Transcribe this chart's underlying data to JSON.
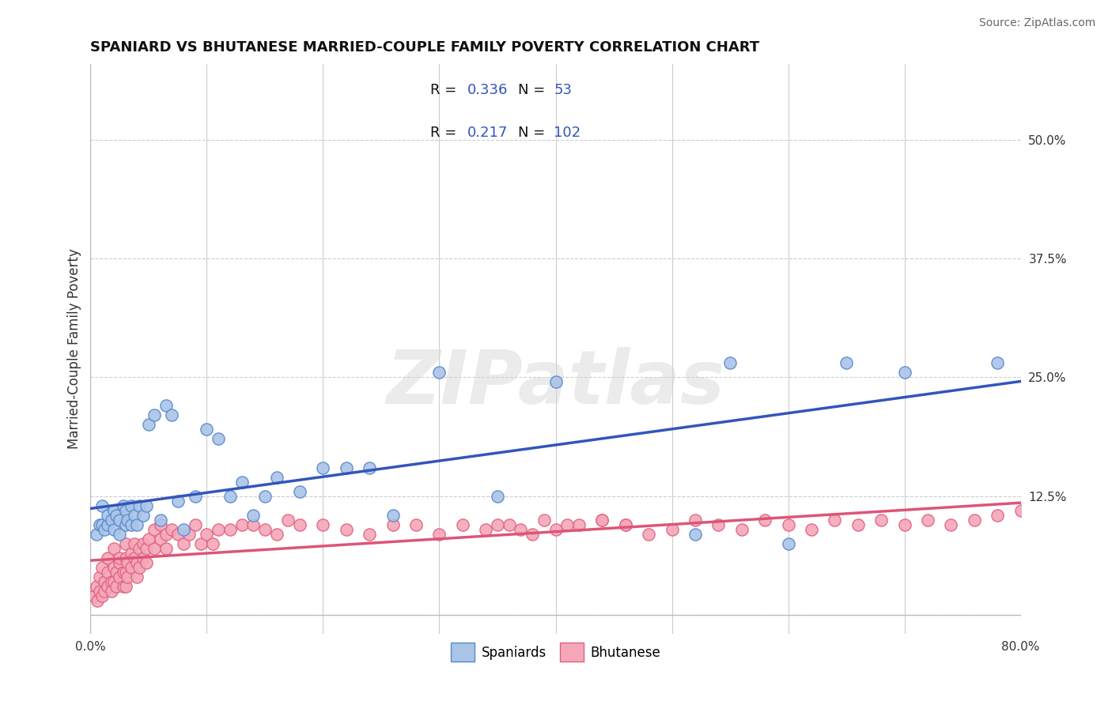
{
  "title": "SPANIARD VS BHUTANESE MARRIED-COUPLE FAMILY POVERTY CORRELATION CHART",
  "source": "Source: ZipAtlas.com",
  "ylabel": "Married-Couple Family Poverty",
  "xlim": [
    0.0,
    0.8
  ],
  "ylim": [
    -0.02,
    0.58
  ],
  "xticks": [
    0.0,
    0.8
  ],
  "xticklabels": [
    "0.0%",
    "80.0%"
  ],
  "ytick_positions": [
    0.0,
    0.125,
    0.25,
    0.375,
    0.5
  ],
  "ytick_labels": [
    "",
    "12.5%",
    "25.0%",
    "37.5%",
    "50.0%"
  ],
  "spaniard_color": "#aac4e8",
  "bhutanese_color": "#f4a7b8",
  "spaniard_edge_color": "#5588cc",
  "bhutanese_edge_color": "#e06080",
  "spaniard_line_color": "#3355bb",
  "bhutanese_line_color": "#dd5577",
  "legend_R1": "0.336",
  "legend_N1": "53",
  "legend_R2": "0.217",
  "legend_N2": "102",
  "watermark": "ZIPatlas",
  "background_color": "#ffffff",
  "grid_color": "#cccccc",
  "spaniard_x": [
    0.005,
    0.008,
    0.01,
    0.01,
    0.012,
    0.015,
    0.015,
    0.018,
    0.02,
    0.02,
    0.022,
    0.025,
    0.025,
    0.028,
    0.03,
    0.03,
    0.032,
    0.035,
    0.035,
    0.038,
    0.04,
    0.042,
    0.045,
    0.048,
    0.05,
    0.055,
    0.06,
    0.065,
    0.07,
    0.075,
    0.08,
    0.09,
    0.1,
    0.11,
    0.12,
    0.13,
    0.14,
    0.15,
    0.16,
    0.18,
    0.2,
    0.22,
    0.24,
    0.26,
    0.3,
    0.35,
    0.4,
    0.52,
    0.55,
    0.6,
    0.65,
    0.7,
    0.78
  ],
  "spaniard_y": [
    0.085,
    0.095,
    0.095,
    0.115,
    0.09,
    0.095,
    0.105,
    0.1,
    0.09,
    0.11,
    0.105,
    0.085,
    0.1,
    0.115,
    0.095,
    0.11,
    0.1,
    0.095,
    0.115,
    0.105,
    0.095,
    0.115,
    0.105,
    0.115,
    0.2,
    0.21,
    0.1,
    0.22,
    0.21,
    0.12,
    0.09,
    0.125,
    0.195,
    0.185,
    0.125,
    0.14,
    0.105,
    0.125,
    0.145,
    0.13,
    0.155,
    0.155,
    0.155,
    0.105,
    0.255,
    0.125,
    0.245,
    0.085,
    0.265,
    0.075,
    0.265,
    0.255,
    0.265
  ],
  "bhutanese_x": [
    0.003,
    0.005,
    0.006,
    0.008,
    0.008,
    0.01,
    0.01,
    0.012,
    0.012,
    0.015,
    0.015,
    0.015,
    0.018,
    0.018,
    0.02,
    0.02,
    0.02,
    0.022,
    0.022,
    0.025,
    0.025,
    0.025,
    0.028,
    0.028,
    0.03,
    0.03,
    0.03,
    0.03,
    0.032,
    0.032,
    0.035,
    0.035,
    0.038,
    0.038,
    0.04,
    0.04,
    0.042,
    0.042,
    0.045,
    0.045,
    0.048,
    0.048,
    0.05,
    0.055,
    0.055,
    0.06,
    0.06,
    0.065,
    0.065,
    0.07,
    0.075,
    0.08,
    0.085,
    0.09,
    0.095,
    0.1,
    0.105,
    0.11,
    0.12,
    0.13,
    0.14,
    0.15,
    0.16,
    0.17,
    0.18,
    0.2,
    0.22,
    0.24,
    0.26,
    0.28,
    0.3,
    0.32,
    0.34,
    0.36,
    0.38,
    0.4,
    0.42,
    0.44,
    0.46,
    0.48,
    0.5,
    0.52,
    0.54,
    0.56,
    0.58,
    0.6,
    0.62,
    0.64,
    0.66,
    0.68,
    0.7,
    0.72,
    0.74,
    0.76,
    0.78,
    0.8,
    0.35,
    0.37,
    0.39,
    0.41,
    0.44,
    0.46
  ],
  "bhutanese_y": [
    0.02,
    0.03,
    0.015,
    0.04,
    0.025,
    0.02,
    0.05,
    0.035,
    0.025,
    0.045,
    0.03,
    0.06,
    0.035,
    0.025,
    0.05,
    0.035,
    0.07,
    0.045,
    0.03,
    0.055,
    0.04,
    0.06,
    0.045,
    0.03,
    0.06,
    0.045,
    0.075,
    0.03,
    0.055,
    0.04,
    0.065,
    0.05,
    0.06,
    0.075,
    0.055,
    0.04,
    0.07,
    0.05,
    0.075,
    0.06,
    0.07,
    0.055,
    0.08,
    0.09,
    0.07,
    0.08,
    0.095,
    0.085,
    0.07,
    0.09,
    0.085,
    0.075,
    0.085,
    0.095,
    0.075,
    0.085,
    0.075,
    0.09,
    0.09,
    0.095,
    0.095,
    0.09,
    0.085,
    0.1,
    0.095,
    0.095,
    0.09,
    0.085,
    0.095,
    0.095,
    0.085,
    0.095,
    0.09,
    0.095,
    0.085,
    0.09,
    0.095,
    0.1,
    0.095,
    0.085,
    0.09,
    0.1,
    0.095,
    0.09,
    0.1,
    0.095,
    0.09,
    0.1,
    0.095,
    0.1,
    0.095,
    0.1,
    0.095,
    0.1,
    0.105,
    0.11,
    0.095,
    0.09,
    0.1,
    0.095,
    0.1,
    0.095
  ]
}
